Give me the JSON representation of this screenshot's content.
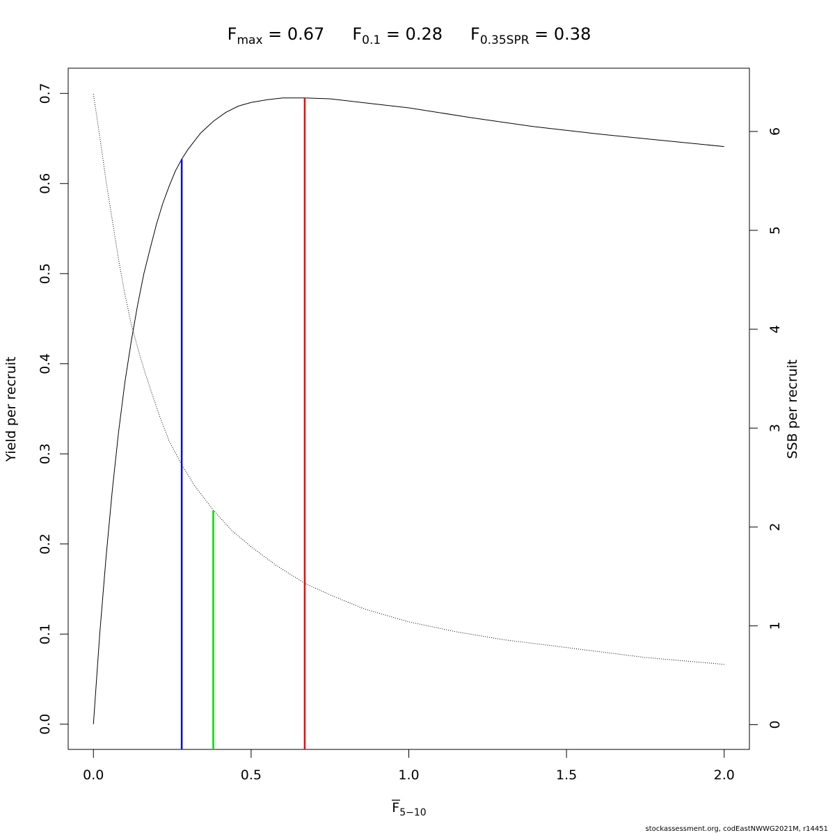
{
  "chart_data": {
    "type": "line",
    "title_parts": [
      {
        "base": "F",
        "sub": "max",
        "rest": " = 0.67"
      },
      {
        "base": "F",
        "sub": "0.1",
        "rest": " = 0.28"
      },
      {
        "base": "F",
        "sub": "0.35SPR",
        "rest": " = 0.38"
      }
    ],
    "xlabel": {
      "base": "F",
      "sub": "5−10"
    },
    "ylabel_left": "Yield per recruit",
    "ylabel_right": "SSB per recruit",
    "xlim": [
      -0.08,
      2.08
    ],
    "ylim_left": [
      -0.028,
      0.728
    ],
    "ylim_right": [
      -0.25,
      6.64
    ],
    "x_ticks": [
      0,
      0.5,
      1,
      1.5,
      2
    ],
    "x_tick_labels": [
      "0.0",
      "0.5",
      "1.0",
      "1.5",
      "2.0"
    ],
    "y_left_ticks": [
      0,
      0.1,
      0.2,
      0.3,
      0.4,
      0.5,
      0.6,
      0.7
    ],
    "y_left_tick_labels": [
      "0.0",
      "0.1",
      "0.2",
      "0.3",
      "0.4",
      "0.5",
      "0.6",
      "0.7"
    ],
    "y_right_ticks": [
      0,
      1,
      2,
      3,
      4,
      5,
      6
    ],
    "y_right_tick_labels": [
      "0",
      "1",
      "2",
      "3",
      "4",
      "5",
      "6"
    ],
    "grid": false,
    "series": [
      {
        "axis": "left",
        "style": "solid",
        "color": "#000000",
        "x": [
          0,
          0.02,
          0.04,
          0.06,
          0.08,
          0.1,
          0.12,
          0.14,
          0.16,
          0.18,
          0.2,
          0.22,
          0.24,
          0.26,
          0.28,
          0.3,
          0.34,
          0.38,
          0.42,
          0.46,
          0.5,
          0.55,
          0.6,
          0.67,
          0.75,
          0.85,
          1.0,
          1.2,
          1.4,
          1.6,
          1.8,
          2.0
        ],
        "values": [
          0,
          0.1,
          0.185,
          0.26,
          0.325,
          0.38,
          0.425,
          0.465,
          0.5,
          0.528,
          0.555,
          0.578,
          0.597,
          0.614,
          0.627,
          0.638,
          0.656,
          0.669,
          0.679,
          0.686,
          0.69,
          0.693,
          0.695,
          0.695,
          0.694,
          0.69,
          0.684,
          0.673,
          0.663,
          0.655,
          0.648,
          0.641
        ]
      },
      {
        "axis": "right",
        "style": "dotted",
        "color": "#000000",
        "x": [
          0,
          0.02,
          0.04,
          0.06,
          0.08,
          0.1,
          0.12,
          0.15,
          0.18,
          0.21,
          0.24,
          0.28,
          0.32,
          0.38,
          0.44,
          0.5,
          0.58,
          0.67,
          0.76,
          0.86,
          1.0,
          1.15,
          1.3,
          1.5,
          1.75,
          2.0
        ],
        "values": [
          6.38,
          5.95,
          5.5,
          5.1,
          4.7,
          4.35,
          4.05,
          3.7,
          3.4,
          3.12,
          2.87,
          2.63,
          2.42,
          2.17,
          1.96,
          1.8,
          1.61,
          1.43,
          1.3,
          1.17,
          1.04,
          0.94,
          0.86,
          0.78,
          0.68,
          0.61
        ]
      }
    ],
    "reference_lines": [
      {
        "name": "F0.1",
        "x": 0.28,
        "y_top": 0.627,
        "color": "#0000ff"
      },
      {
        "name": "F0.35SPR",
        "x": 0.38,
        "y_top": 0.237,
        "color": "#00dd00"
      },
      {
        "name": "Fmax",
        "x": 0.67,
        "y_top": 0.695,
        "color": "#ff0000"
      }
    ]
  },
  "footer": "stockassessment.org, codEastNWWG2021M, r14451"
}
